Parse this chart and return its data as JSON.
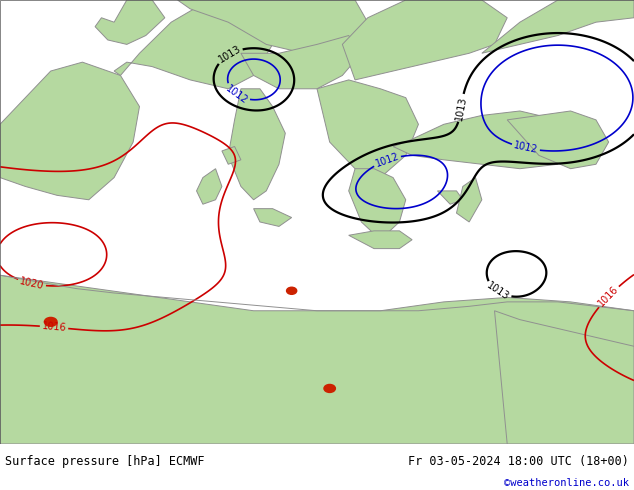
{
  "title_left": "Surface pressure [hPa] ECMWF",
  "title_right": "Fr 03-05-2024 18:00 UTC (18+00)",
  "credit": "©weatheronline.co.uk",
  "land_color": "#b5d9a0",
  "sea_color": "#d8efd8",
  "footer_bg": "#c8c8c8",
  "footer_text_color": "#000000",
  "credit_color": "#0000cc",
  "fig_width": 6.34,
  "fig_height": 4.9,
  "dpi": 100,
  "coast_color": "#909090",
  "coast_lw": 0.7,
  "isobar_black_color": "#000000",
  "isobar_red_color": "#cc0000",
  "isobar_blue_color": "#0000cc",
  "isobar_lw_black": 1.6,
  "isobar_lw_colored": 1.2,
  "label_fontsize": 7
}
